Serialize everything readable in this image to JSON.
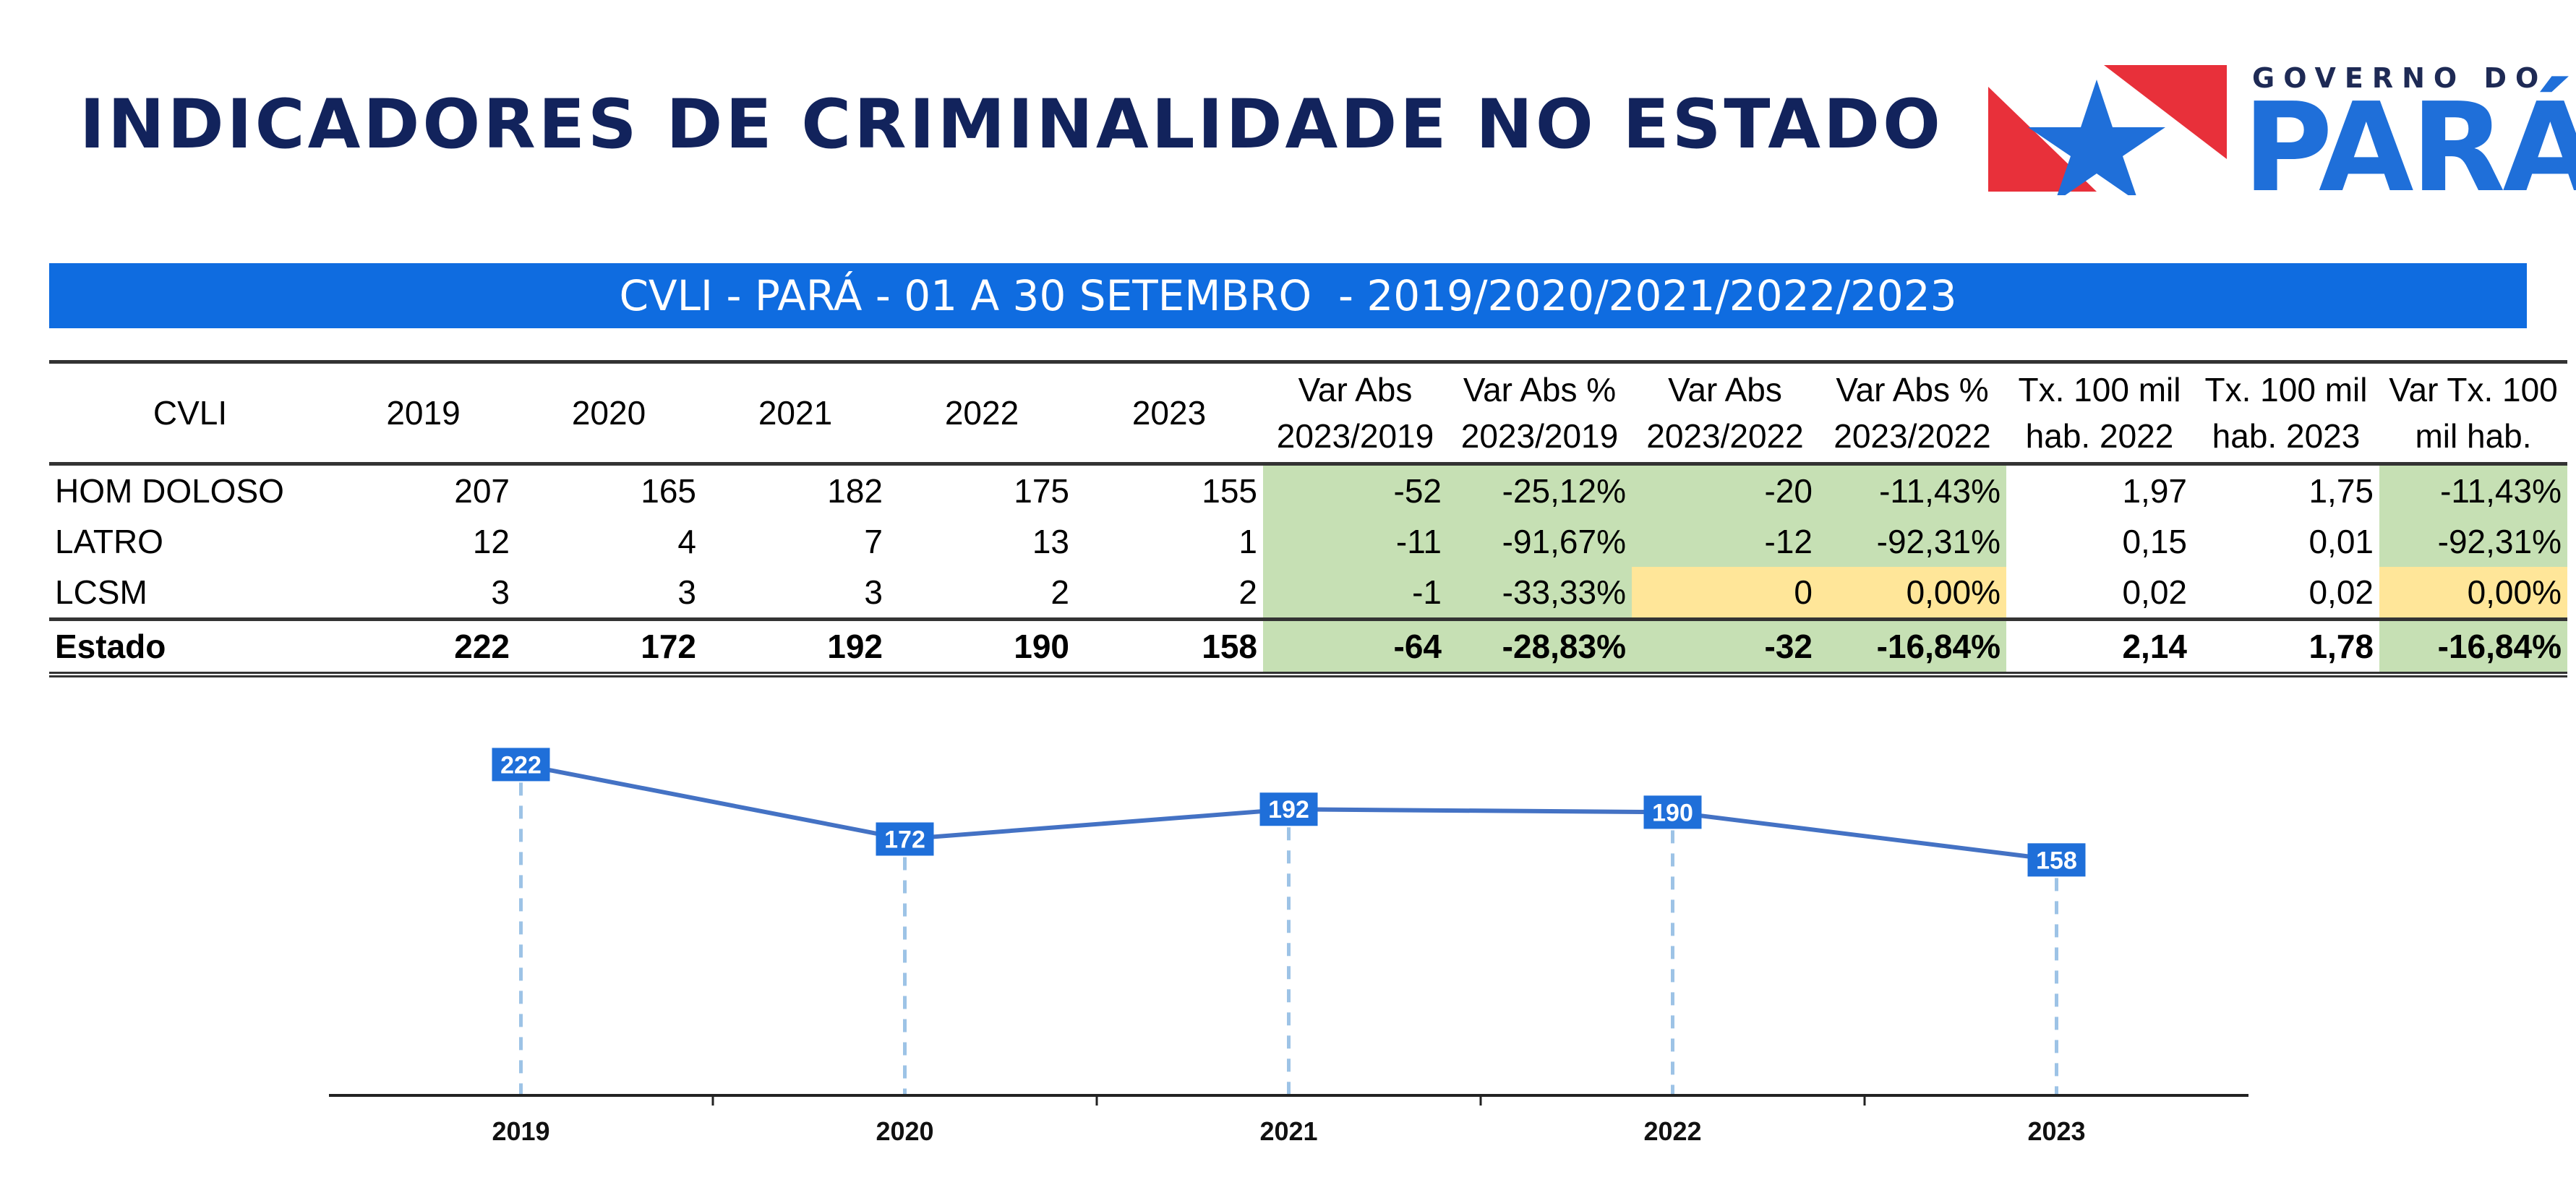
{
  "header": {
    "title": "INDICADORES DE CRIMINALIDADE NO ESTADO"
  },
  "logo": {
    "line1": "GOVERNO DO",
    "line2": "PARÁ",
    "red": "#e8303a",
    "blue": "#1f6fd9"
  },
  "banner": {
    "text": "CVLI - PARÁ - 01 A 30 SETEMBRO  - 2019/2020/2021/2022/2023",
    "color": "#0f6ce0"
  },
  "table": {
    "header_first": "CVLI",
    "headers": [
      [
        "2019"
      ],
      [
        "2020"
      ],
      [
        "2021"
      ],
      [
        "2022"
      ],
      [
        "2023"
      ],
      [
        "Var Abs",
        "2023/2019"
      ],
      [
        "Var Abs %",
        "2023/2019"
      ],
      [
        "Var Abs",
        "2023/2022"
      ],
      [
        "Var Abs %",
        "2023/2022"
      ],
      [
        "Tx. 100 mil",
        "hab. 2022"
      ],
      [
        "Tx. 100 mil",
        "hab. 2023"
      ],
      [
        "Var Tx. 100",
        "mil hab."
      ]
    ],
    "rows": [
      {
        "label": "HOM DOLOSO",
        "cells": [
          "207",
          "165",
          "182",
          "175",
          "155",
          "-52",
          "-25,12%",
          "-20",
          "-11,43%",
          "1,97",
          "1,75",
          "-11,43%"
        ],
        "shade": [
          "",
          "",
          "",
          "",
          "",
          "g",
          "g",
          "g",
          "g",
          "",
          "",
          "g"
        ]
      },
      {
        "label": "LATRO",
        "cells": [
          "12",
          "4",
          "7",
          "13",
          "1",
          "-11",
          "-91,67%",
          "-12",
          "-92,31%",
          "0,15",
          "0,01",
          "-92,31%"
        ],
        "shade": [
          "",
          "",
          "",
          "",
          "",
          "g",
          "g",
          "g",
          "g",
          "",
          "",
          "g"
        ]
      },
      {
        "label": "LCSM",
        "cells": [
          "3",
          "3",
          "3",
          "2",
          "2",
          "-1",
          "-33,33%",
          "0",
          "0,00%",
          "0,02",
          "0,02",
          "0,00%"
        ],
        "shade": [
          "",
          "",
          "",
          "",
          "",
          "g",
          "g",
          "y",
          "y",
          "",
          "",
          "y"
        ]
      },
      {
        "label": "Estado",
        "cells": [
          "222",
          "172",
          "192",
          "190",
          "158",
          "-64",
          "-28,83%",
          "-32",
          "-16,84%",
          "2,14",
          "1,78",
          "-16,84%"
        ],
        "shade": [
          "",
          "",
          "",
          "",
          "",
          "g",
          "g",
          "g",
          "g",
          "",
          "",
          "g"
        ],
        "total": true
      }
    ],
    "shade_colors": {
      "g": "#c6e0b4",
      "y": "#ffe699"
    }
  },
  "chart_data": {
    "type": "line",
    "categories": [
      "2019",
      "2020",
      "2021",
      "2022",
      "2023"
    ],
    "series": [
      {
        "values": [
          222,
          172,
          192,
          190,
          158
        ]
      }
    ],
    "color": "#4472c4",
    "label_color": "#1f6fd9",
    "ylim": [
      0,
      245
    ],
    "grid": false,
    "drop_lines": true
  }
}
